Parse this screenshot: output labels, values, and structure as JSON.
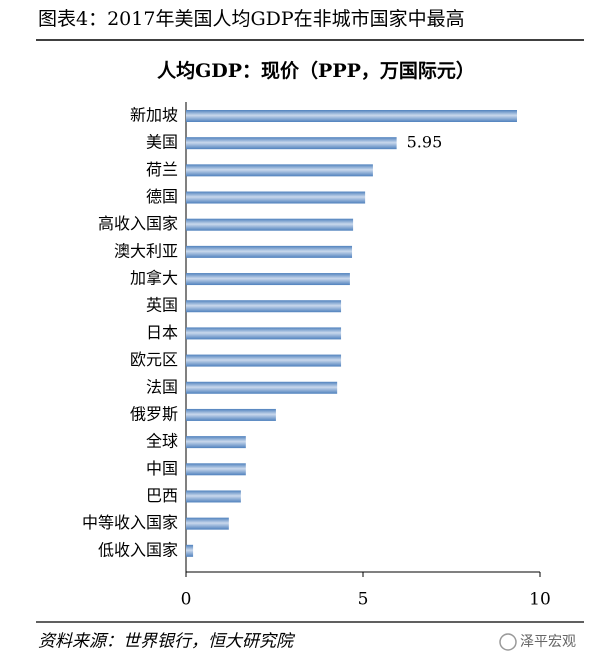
{
  "header": {
    "title": "图表4：2017年美国人均GDP在非城市国家中最高"
  },
  "chart_data": {
    "type": "hbar",
    "title": "人均GDP：现价（PPP，万国际元）",
    "categories": [
      "新加坡",
      "美国",
      "荷兰",
      "德国",
      "高收入国家",
      "澳大利亚",
      "加拿大",
      "英国",
      "日本",
      "欧元区",
      "法国",
      "俄罗斯",
      "全球",
      "中国",
      "巴西",
      "中等收入国家",
      "低收入国家"
    ],
    "values": [
      9.35,
      5.95,
      5.28,
      5.06,
      4.72,
      4.69,
      4.63,
      4.38,
      4.38,
      4.38,
      4.27,
      2.54,
      1.69,
      1.69,
      1.55,
      1.21,
      0.2
    ],
    "value_labels": [
      null,
      "5.95",
      null,
      null,
      null,
      null,
      null,
      null,
      null,
      null,
      null,
      null,
      null,
      null,
      null,
      null,
      null
    ],
    "color": "#4f81bd",
    "xlim": [
      0,
      10
    ],
    "xticks": [
      0,
      5,
      10
    ]
  },
  "footer": {
    "source": "资料来源：世界银行，恒大研究院",
    "watermark": "泽平宏观"
  }
}
